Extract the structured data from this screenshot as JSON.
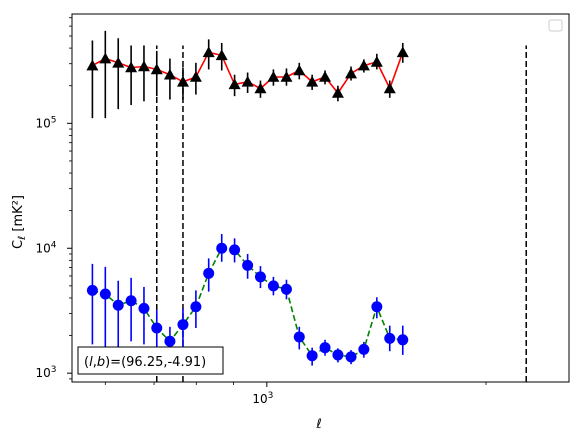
{
  "chart_data": {
    "type": "scatter",
    "title": "",
    "xlabel": "ℓ",
    "ylabel": "C_ℓ  [mK²]",
    "xscale": "log",
    "yscale": "log",
    "xlim": [
      540,
      2600
    ],
    "ylim": [
      850,
      750000
    ],
    "xticks": [
      {
        "value": 1000,
        "label": "10^3"
      }
    ],
    "yticks": [
      {
        "value": 1000,
        "label": "10^3"
      },
      {
        "value": 10000,
        "label": "10^4"
      },
      {
        "value": 100000,
        "label": "10^5"
      }
    ],
    "legend": {
      "placement": "top-right",
      "entries": []
    },
    "annotation": "(l, b)=(96.25,-4.91)",
    "vlines": [
      {
        "x": 706
      },
      {
        "x": 767
      },
      {
        "x": 2271
      }
    ],
    "series": [
      {
        "marker": "triangle",
        "color": "#000000",
        "line_color": "#ff0000",
        "line_style": "solid",
        "points": [
          {
            "x": 576,
            "y": 290000,
            "lo": 110000,
            "hi": 460000
          },
          {
            "x": 600,
            "y": 330000,
            "lo": 110000,
            "hi": 550000
          },
          {
            "x": 625,
            "y": 305000,
            "lo": 130000,
            "hi": 480000
          },
          {
            "x": 651,
            "y": 280000,
            "lo": 140000,
            "hi": 420000
          },
          {
            "x": 678,
            "y": 285000,
            "lo": 150000,
            "hi": 420000
          },
          {
            "x": 706,
            "y": 270000,
            "lo": 165000,
            "hi": 380000
          },
          {
            "x": 736,
            "y": 245000,
            "lo": 155000,
            "hi": 330000
          },
          {
            "x": 767,
            "y": 215000,
            "lo": 155000,
            "hi": 280000
          },
          {
            "x": 799,
            "y": 235000,
            "lo": 170000,
            "hi": 305000
          },
          {
            "x": 832,
            "y": 370000,
            "lo": 270000,
            "hi": 470000
          },
          {
            "x": 867,
            "y": 350000,
            "lo": 265000,
            "hi": 440000
          },
          {
            "x": 903,
            "y": 205000,
            "lo": 165000,
            "hi": 245000
          },
          {
            "x": 941,
            "y": 215000,
            "lo": 175000,
            "hi": 255000
          },
          {
            "x": 980,
            "y": 190000,
            "lo": 160000,
            "hi": 220000
          },
          {
            "x": 1021,
            "y": 235000,
            "lo": 200000,
            "hi": 270000
          },
          {
            "x": 1064,
            "y": 235000,
            "lo": 200000,
            "hi": 275000
          },
          {
            "x": 1108,
            "y": 265000,
            "lo": 225000,
            "hi": 305000
          },
          {
            "x": 1154,
            "y": 215000,
            "lo": 185000,
            "hi": 245000
          },
          {
            "x": 1202,
            "y": 235000,
            "lo": 205000,
            "hi": 265000
          },
          {
            "x": 1252,
            "y": 175000,
            "lo": 150000,
            "hi": 200000
          },
          {
            "x": 1305,
            "y": 250000,
            "lo": 220000,
            "hi": 285000
          },
          {
            "x": 1359,
            "y": 290000,
            "lo": 255000,
            "hi": 325000
          },
          {
            "x": 1416,
            "y": 310000,
            "lo": 270000,
            "hi": 360000
          },
          {
            "x": 1475,
            "y": 190000,
            "lo": 160000,
            "hi": 220000
          },
          {
            "x": 1537,
            "y": 370000,
            "lo": 305000,
            "hi": 440000
          }
        ]
      },
      {
        "marker": "circle",
        "color": "#0000ff",
        "line_color": "#008000",
        "line_style": "dashed",
        "points": [
          {
            "x": 576,
            "y": 4600,
            "lo": 1700,
            "hi": 7500
          },
          {
            "x": 600,
            "y": 4300,
            "lo": 1500,
            "hi": 7100
          },
          {
            "x": 625,
            "y": 3500,
            "lo": 1550,
            "hi": 5500
          },
          {
            "x": 651,
            "y": 3800,
            "lo": 1800,
            "hi": 5800
          },
          {
            "x": 678,
            "y": 3300,
            "lo": 1700,
            "hi": 4900
          },
          {
            "x": 706,
            "y": 2300,
            "lo": 1450,
            "hi": 3200
          },
          {
            "x": 736,
            "y": 1800,
            "lo": 1250,
            "hi": 2350
          },
          {
            "x": 767,
            "y": 2450,
            "lo": 1600,
            "hi": 3300
          },
          {
            "x": 799,
            "y": 3400,
            "lo": 2300,
            "hi": 4600
          },
          {
            "x": 832,
            "y": 6300,
            "lo": 4500,
            "hi": 8300
          },
          {
            "x": 867,
            "y": 10000,
            "lo": 7800,
            "hi": 13000
          },
          {
            "x": 903,
            "y": 9700,
            "lo": 7700,
            "hi": 12000
          },
          {
            "x": 941,
            "y": 7300,
            "lo": 5700,
            "hi": 9000
          },
          {
            "x": 980,
            "y": 5900,
            "lo": 4800,
            "hi": 7200
          },
          {
            "x": 1021,
            "y": 5000,
            "lo": 4200,
            "hi": 5900
          },
          {
            "x": 1064,
            "y": 4700,
            "lo": 3900,
            "hi": 5600
          },
          {
            "x": 1108,
            "y": 1950,
            "lo": 1550,
            "hi": 2350
          },
          {
            "x": 1154,
            "y": 1380,
            "lo": 1150,
            "hi": 1600
          },
          {
            "x": 1202,
            "y": 1600,
            "lo": 1380,
            "hi": 1850
          },
          {
            "x": 1252,
            "y": 1400,
            "lo": 1220,
            "hi": 1580
          },
          {
            "x": 1305,
            "y": 1350,
            "lo": 1180,
            "hi": 1530
          },
          {
            "x": 1359,
            "y": 1550,
            "lo": 1330,
            "hi": 1780
          },
          {
            "x": 1416,
            "y": 3400,
            "lo": 2750,
            "hi": 4050
          },
          {
            "x": 1475,
            "y": 1900,
            "lo": 1500,
            "hi": 2400
          },
          {
            "x": 1537,
            "y": 1850,
            "lo": 1400,
            "hi": 2400
          }
        ]
      }
    ]
  }
}
